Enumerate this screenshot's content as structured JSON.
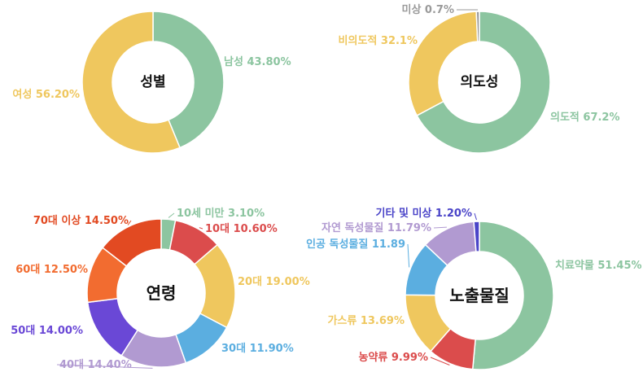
{
  "chart_data": [
    {
      "type": "pie",
      "title": "성별",
      "slices": [
        {
          "label": "남성",
          "value": 43.8,
          "text": "43.80%",
          "color": "#8cc5a0"
        },
        {
          "label": "여성",
          "value": 56.2,
          "text": "56.20%",
          "color": "#efc75e"
        }
      ]
    },
    {
      "type": "pie",
      "title": "의도성",
      "slices": [
        {
          "label": "의도적",
          "value": 67.2,
          "text": "67.2%",
          "color": "#8cc5a0"
        },
        {
          "label": "비의도적",
          "value": 32.1,
          "text": "32.1%",
          "color": "#efc75e"
        },
        {
          "label": "미상",
          "value": 0.7,
          "text": "0.7%",
          "color": "#9a9a9a"
        }
      ]
    },
    {
      "type": "pie",
      "title": "연령",
      "slices": [
        {
          "label": "10세 미만",
          "value": 3.1,
          "text": "3.10%",
          "color": "#8cc5a0"
        },
        {
          "label": "10대",
          "value": 10.6,
          "text": "10.60%",
          "color": "#db4c4c"
        },
        {
          "label": "20대",
          "value": 19.0,
          "text": "19.00%",
          "color": "#efc75e"
        },
        {
          "label": "30대",
          "value": 11.9,
          "text": "11.90%",
          "color": "#5baee0"
        },
        {
          "label": "40대",
          "value": 14.4,
          "text": "14.40%",
          "color": "#b19ad1"
        },
        {
          "label": "50대",
          "value": 14.0,
          "text": "14.00%",
          "color": "#6a48d6"
        },
        {
          "label": "60대",
          "value": 12.5,
          "text": "12.50%",
          "color": "#f26c30"
        },
        {
          "label": "70대 이상",
          "value": 14.5,
          "text": "14.50%",
          "color": "#e24a22"
        }
      ]
    },
    {
      "type": "pie",
      "title": "노출물질",
      "slices": [
        {
          "label": "치료약물",
          "value": 51.45,
          "text": "51.45%",
          "color": "#8cc5a0"
        },
        {
          "label": "농약류",
          "value": 9.99,
          "text": "9.99%",
          "color": "#db4c4c"
        },
        {
          "label": "가스류",
          "value": 13.69,
          "text": "13.69%",
          "color": "#efc75e"
        },
        {
          "label": "인공 독성물질",
          "value": 11.89,
          "text": "11.89",
          "color": "#5baee0"
        },
        {
          "label": "자연 독성물질",
          "value": 11.79,
          "text": "11.79%",
          "color": "#b19ad1"
        },
        {
          "label": "기타 및 미상",
          "value": 1.2,
          "text": "1.20%",
          "color": "#4a44c8"
        }
      ]
    }
  ]
}
